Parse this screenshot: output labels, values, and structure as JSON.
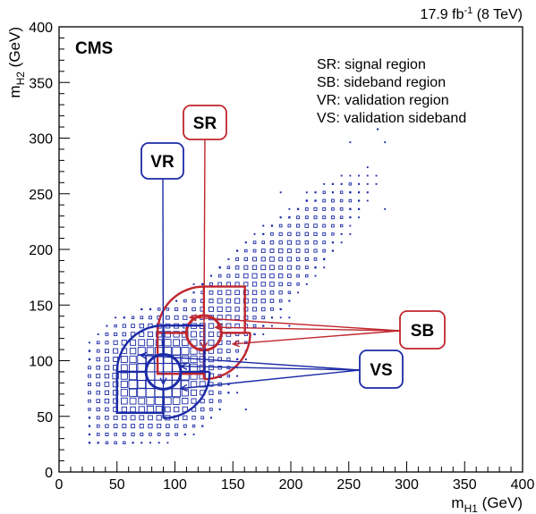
{
  "chart_data": {
    "type": "scatter",
    "title": "",
    "lumi_label": "17.9 fb",
    "lumi_sup": "-1",
    "lumi_energy": " (8 TeV)",
    "experiment": "CMS",
    "xlabel": {
      "main": "m",
      "sub": "H1",
      "unit": " (GeV)"
    },
    "ylabel": {
      "main": "m",
      "sub": "H2",
      "unit": " (GeV)"
    },
    "xlim": [
      0,
      400
    ],
    "ylim": [
      0,
      400
    ],
    "x_ticks": [
      0,
      50,
      100,
      150,
      200,
      250,
      300,
      350,
      400
    ],
    "y_ticks": [
      0,
      50,
      100,
      150,
      200,
      250,
      300,
      350,
      400
    ],
    "legend": [
      "SR: signal region",
      "SB: sideband region",
      "VR: validation region",
      "VS: validation sideband"
    ],
    "regions": [
      {
        "key": "SR",
        "label": "SR",
        "color": "#c0262d",
        "center": [
          125,
          125
        ]
      },
      {
        "key": "SB",
        "label": "SB",
        "color": "#c0262d",
        "center": [
          125,
          125
        ]
      },
      {
        "key": "VR",
        "label": "VR",
        "color": "#1b2aa6",
        "center": [
          90,
          90
        ]
      },
      {
        "key": "VS",
        "label": "VS",
        "color": "#1b2aa6",
        "center": [
          90,
          90
        ]
      }
    ],
    "bin_width": 7.5,
    "marker_color": "#1b2aa6",
    "box_border_colors": {
      "SR": "#c0262d",
      "SB": "#c0262d",
      "VR": "#1b2aa6",
      "VS": "#1b2aa6"
    }
  }
}
